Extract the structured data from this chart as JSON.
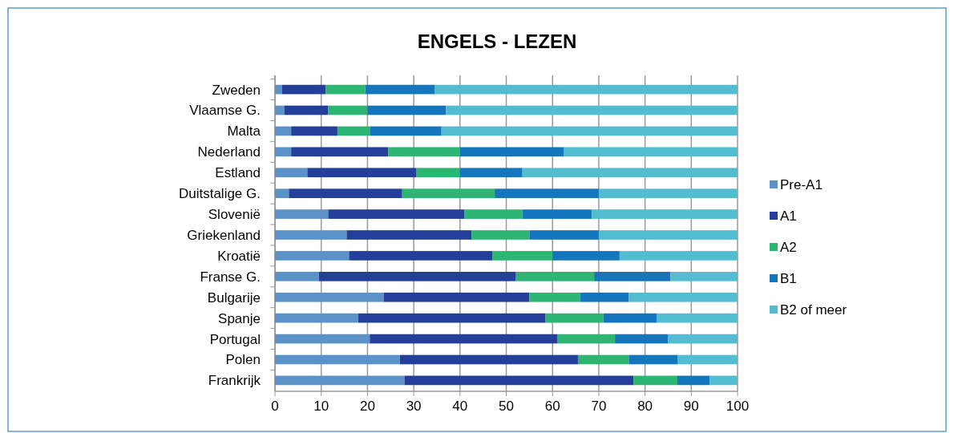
{
  "chart_data": {
    "type": "bar",
    "orientation": "horizontal",
    "stacked": true,
    "title": "ENGELS - LEZEN",
    "categories": [
      "Zweden",
      "Vlaamse G.",
      "Malta",
      "Nederland",
      "Estland",
      "Duitstalige G.",
      "Slovenië",
      "Griekenland",
      "Kroatië",
      "Franse G.",
      "Bulgarije",
      "Spanje",
      "Portugal",
      "Polen",
      "Frankrijk"
    ],
    "series": [
      {
        "name": "Pre-A1",
        "color": "#5b93c8",
        "values": [
          1.5,
          2,
          3.5,
          3.5,
          7,
          3,
          11.5,
          15.5,
          16,
          9.5,
          23.5,
          18,
          20.5,
          27,
          28
        ]
      },
      {
        "name": "A1",
        "color": "#233f99",
        "values": [
          9.5,
          9.5,
          10,
          21,
          23.5,
          24.5,
          29.5,
          27,
          31,
          42.5,
          31.5,
          40.5,
          40.5,
          38.5,
          49.5
        ]
      },
      {
        "name": "A2",
        "color": "#2db573",
        "values": [
          8.5,
          8.5,
          7,
          15.5,
          9.5,
          20,
          12.5,
          12.5,
          13,
          17,
          11,
          12.5,
          12.5,
          11,
          9.5
        ]
      },
      {
        "name": "B1",
        "color": "#1476bc",
        "values": [
          15,
          17,
          15.5,
          22.5,
          13.5,
          22.5,
          15,
          15,
          14.5,
          16.5,
          10.5,
          11.5,
          11.5,
          10.5,
          7
        ]
      },
      {
        "name": "B2 of meer",
        "color": "#52bcd1",
        "values": [
          65.5,
          63,
          64,
          37.5,
          46.5,
          30,
          31.5,
          30,
          25.5,
          14.5,
          23.5,
          17.5,
          15,
          13,
          6
        ]
      }
    ],
    "xlim": [
      0,
      100
    ],
    "xticks": [
      0,
      10,
      20,
      30,
      40,
      50,
      60,
      70,
      80,
      90,
      100
    ],
    "grid": "x",
    "legend": "right"
  }
}
